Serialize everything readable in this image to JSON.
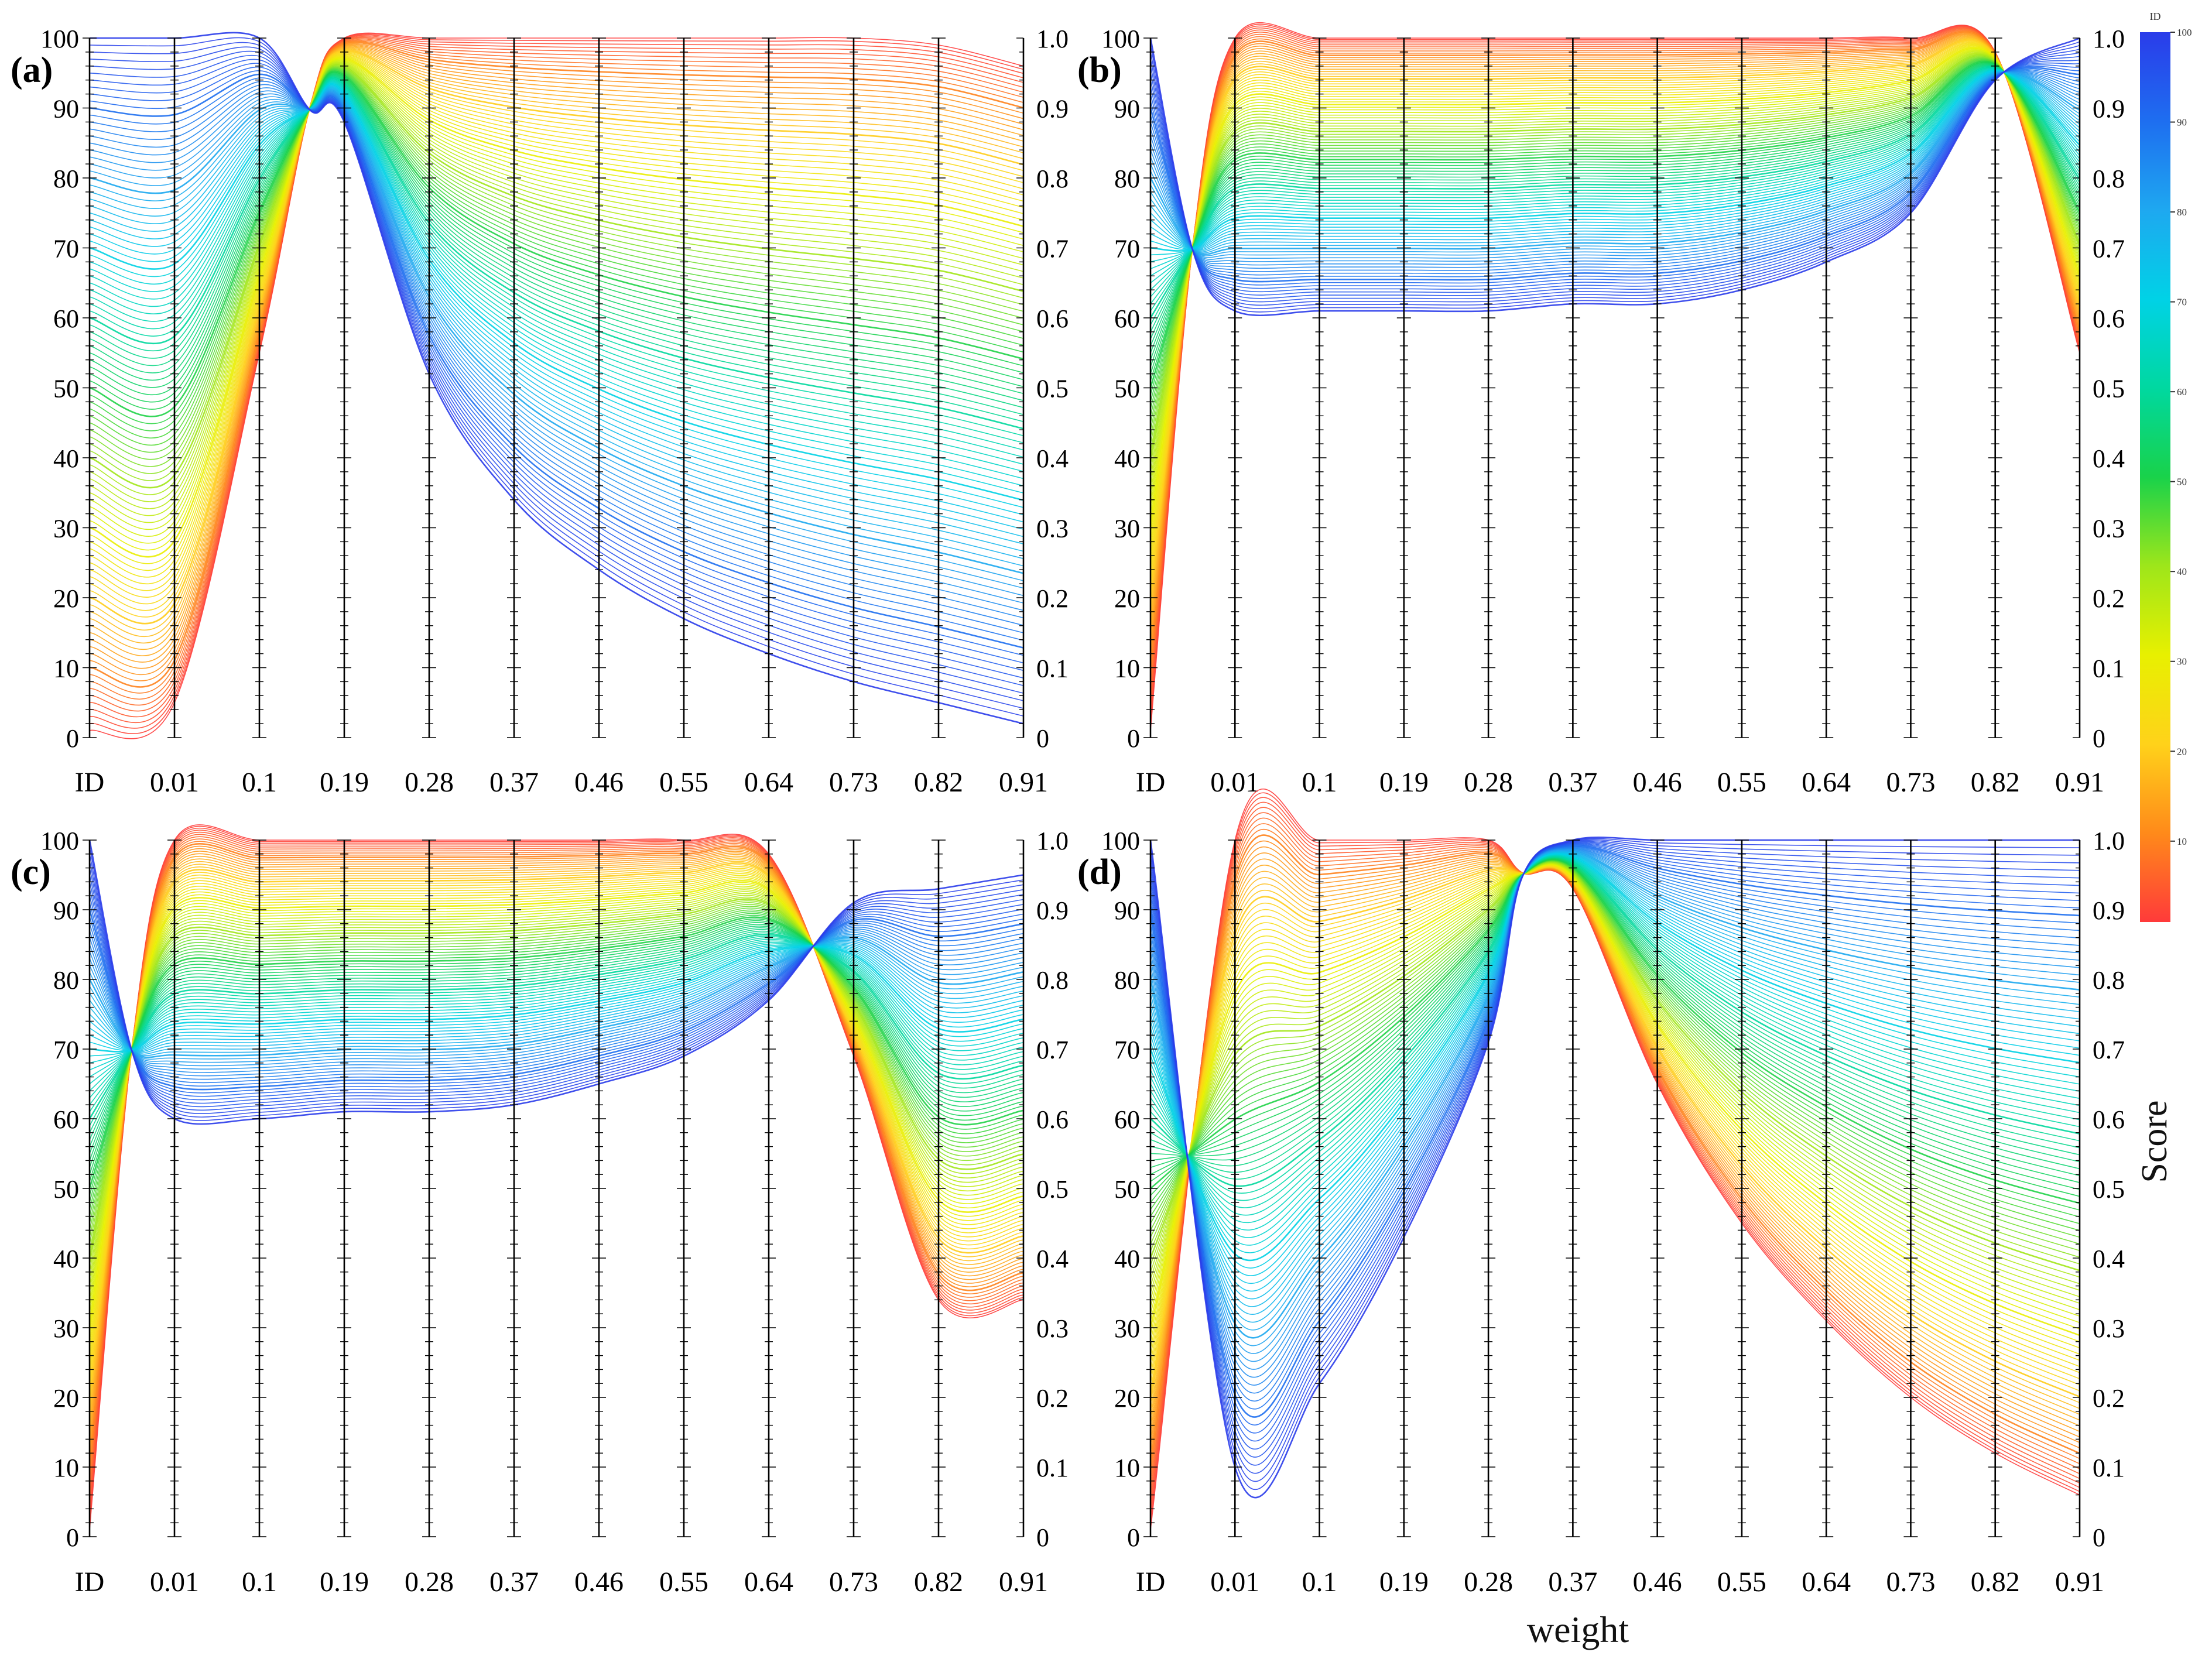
{
  "chart_data": {
    "type": "parallel-coordinates",
    "figure_title": "",
    "x_axis_label": "weight",
    "score_label": "Score",
    "id_axis_ticks": [
      "0",
      "10",
      "20",
      "30",
      "40",
      "50",
      "60",
      "70",
      "80",
      "90",
      "100"
    ],
    "score_axis_ticks": [
      "0",
      "0.1",
      "0.2",
      "0.3",
      "0.4",
      "0.5",
      "0.6",
      "0.7",
      "0.8",
      "0.9",
      "1.0"
    ],
    "colorbar": {
      "title": "ID",
      "range": [
        1,
        100
      ],
      "ticks": [
        "10",
        "20",
        "30",
        "40",
        "50",
        "60",
        "70",
        "80",
        "90",
        "100"
      ],
      "colors": [
        "#ff3a3a",
        "#ff8a1a",
        "#ffd21a",
        "#e8f000",
        "#9ee61a",
        "#19d24a",
        "#00d8a0",
        "#00d2e6",
        "#1ea8f0",
        "#1e6ef0",
        "#2a3cea"
      ]
    },
    "panels": [
      {
        "label": "(a)",
        "axes": [
          "ID",
          "0.01",
          "0.1",
          "0.19",
          "0.28",
          "0.37",
          "0.46",
          "0.55",
          "0.64",
          "0.73",
          "0.82",
          "0.91"
        ],
        "score_ranges": {
          "low_id": [
            0.05,
            0.55,
            1.0,
            1.0,
            1.0,
            1.0,
            1.0,
            1.0,
            1.0,
            0.99,
            0.96
          ],
          "high_id": [
            1.0,
            1.0,
            0.88,
            0.52,
            0.34,
            0.24,
            0.17,
            0.12,
            0.08,
            0.05,
            0.02
          ]
        },
        "knot_position": 2.6,
        "knot_score": 0.9
      },
      {
        "label": "(b)",
        "axes": [
          "ID",
          "0.01",
          "0.1",
          "0.19",
          "0.28",
          "0.37",
          "0.46",
          "0.55",
          "0.64",
          "0.73",
          "0.82",
          "0.91"
        ],
        "score_ranges": {
          "low_id": [
            1.0,
            1.0,
            1.0,
            1.0,
            1.0,
            1.0,
            1.0,
            1.0,
            1.0,
            0.98,
            0.55
          ],
          "high_id": [
            0.61,
            0.61,
            0.61,
            0.61,
            0.62,
            0.62,
            0.64,
            0.68,
            0.75,
            0.94,
            1.0
          ]
        },
        "knot_position": 0.5,
        "knot_score": 0.7
      },
      {
        "label": "(c)",
        "axes": [
          "ID",
          "0.01",
          "0.1",
          "0.19",
          "0.28",
          "0.37",
          "0.46",
          "0.55",
          "0.64",
          "0.73",
          "0.82",
          "0.91"
        ],
        "score_ranges": {
          "low_id": [
            1.0,
            1.0,
            1.0,
            1.0,
            1.0,
            1.0,
            1.0,
            0.98,
            0.69,
            0.34,
            0.34
          ],
          "high_id": [
            0.6,
            0.6,
            0.61,
            0.61,
            0.62,
            0.65,
            0.69,
            0.77,
            0.91,
            0.93,
            0.95
          ]
        },
        "knot_position": 0.5,
        "knot_score": 0.7
      },
      {
        "label": "(d)",
        "axes": [
          "ID",
          "0.01",
          "0.1",
          "0.19",
          "0.28",
          "0.37",
          "0.46",
          "0.55",
          "0.64",
          "0.73",
          "0.82",
          "0.91"
        ],
        "score_ranges": {
          "low_id": [
            1.0,
            1.0,
            1.0,
            1.0,
            0.93,
            0.65,
            0.45,
            0.31,
            0.2,
            0.12,
            0.06
          ],
          "high_id": [
            0.1,
            0.22,
            0.43,
            0.71,
            1.0,
            1.0,
            1.0,
            1.0,
            1.0,
            1.0,
            1.0
          ]
        },
        "knot_position": 4.4,
        "knot_score": 0.95
      }
    ]
  }
}
